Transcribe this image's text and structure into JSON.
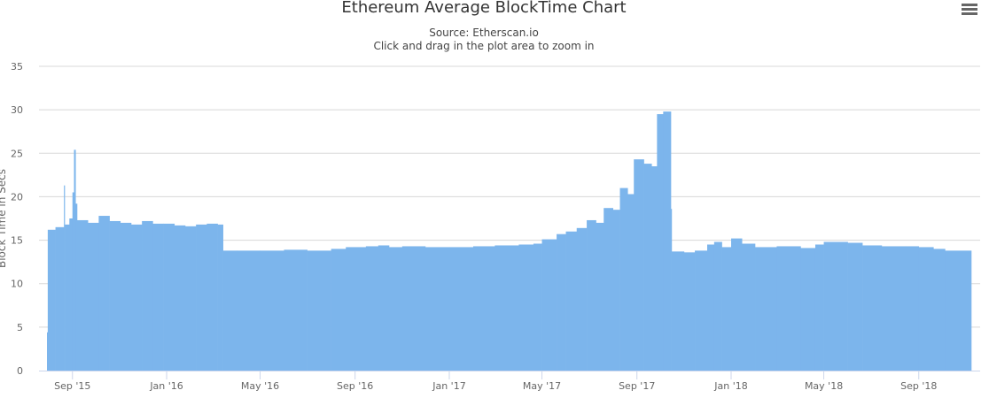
{
  "chart_data": {
    "type": "bar",
    "title": "Ethereum Average BlockTime Chart",
    "subtitle": "Source: Etherscan.io",
    "subtitle2": "Click and drag in the plot area to zoom in",
    "ylabel": "Block Time in Secs",
    "xlabel": "",
    "ylim": [
      0,
      35
    ],
    "yticks": [
      0,
      5,
      10,
      15,
      20,
      25,
      30,
      35
    ],
    "xlim": [
      "2015-07-30",
      "2018-11-08"
    ],
    "xticks": [
      {
        "date": "2015-09-01",
        "label": "Sep '15"
      },
      {
        "date": "2016-01-01",
        "label": "Jan '16"
      },
      {
        "date": "2016-05-01",
        "label": "May '16"
      },
      {
        "date": "2016-09-01",
        "label": "Sep '16"
      },
      {
        "date": "2017-01-01",
        "label": "Jan '17"
      },
      {
        "date": "2017-05-01",
        "label": "May '17"
      },
      {
        "date": "2017-09-01",
        "label": "Sep '17"
      },
      {
        "date": "2018-01-01",
        "label": "Jan '18"
      },
      {
        "date": "2018-05-01",
        "label": "May '18"
      },
      {
        "date": "2018-09-01",
        "label": "Sep '18"
      }
    ],
    "grid": true,
    "legend": "none",
    "bar_color": "#7cb5ec",
    "points": [
      [
        "2015-07-30",
        4.4
      ],
      [
        "2015-07-31",
        16.2
      ],
      [
        "2015-08-10",
        16.5
      ],
      [
        "2015-08-21",
        21.3
      ],
      [
        "2015-08-22",
        16.8
      ],
      [
        "2015-08-28",
        17.5
      ],
      [
        "2015-09-01",
        20.5
      ],
      [
        "2015-09-03",
        25.4
      ],
      [
        "2015-09-05",
        19.2
      ],
      [
        "2015-09-07",
        17.3
      ],
      [
        "2015-09-21",
        17.0
      ],
      [
        "2015-10-05",
        17.8
      ],
      [
        "2015-10-19",
        17.2
      ],
      [
        "2015-11-02",
        17.0
      ],
      [
        "2015-11-16",
        16.8
      ],
      [
        "2015-11-30",
        17.2
      ],
      [
        "2015-12-14",
        16.9
      ],
      [
        "2015-12-28",
        16.9
      ],
      [
        "2016-01-11",
        16.7
      ],
      [
        "2016-01-25",
        16.6
      ],
      [
        "2016-02-08",
        16.8
      ],
      [
        "2016-02-22",
        16.9
      ],
      [
        "2016-03-07",
        16.8
      ],
      [
        "2016-03-14",
        13.8
      ],
      [
        "2016-04-01",
        13.8
      ],
      [
        "2016-05-01",
        13.8
      ],
      [
        "2016-06-01",
        13.9
      ],
      [
        "2016-07-01",
        13.8
      ],
      [
        "2016-08-01",
        14.0
      ],
      [
        "2016-08-20",
        14.2
      ],
      [
        "2016-09-15",
        14.3
      ],
      [
        "2016-10-01",
        14.4
      ],
      [
        "2016-10-15",
        14.2
      ],
      [
        "2016-11-01",
        14.3
      ],
      [
        "2016-12-01",
        14.2
      ],
      [
        "2017-01-01",
        14.2
      ],
      [
        "2017-02-01",
        14.3
      ],
      [
        "2017-03-01",
        14.4
      ],
      [
        "2017-04-01",
        14.5
      ],
      [
        "2017-04-20",
        14.6
      ],
      [
        "2017-05-01",
        15.1
      ],
      [
        "2017-05-20",
        15.7
      ],
      [
        "2017-06-01",
        16.0
      ],
      [
        "2017-06-15",
        16.4
      ],
      [
        "2017-06-28",
        17.3
      ],
      [
        "2017-07-10",
        17.0
      ],
      [
        "2017-07-20",
        18.7
      ],
      [
        "2017-08-01",
        18.5
      ],
      [
        "2017-08-10",
        21.0
      ],
      [
        "2017-08-20",
        20.3
      ],
      [
        "2017-08-28",
        24.3
      ],
      [
        "2017-09-10",
        23.8
      ],
      [
        "2017-09-20",
        23.5
      ],
      [
        "2017-09-27",
        29.5
      ],
      [
        "2017-10-05",
        29.8
      ],
      [
        "2017-10-15",
        18.6
      ],
      [
        "2017-10-16",
        13.7
      ],
      [
        "2017-11-01",
        13.6
      ],
      [
        "2017-11-15",
        13.8
      ],
      [
        "2017-12-01",
        14.5
      ],
      [
        "2017-12-10",
        14.8
      ],
      [
        "2017-12-20",
        14.2
      ],
      [
        "2018-01-01",
        15.2
      ],
      [
        "2018-01-15",
        14.6
      ],
      [
        "2018-02-01",
        14.2
      ],
      [
        "2018-03-01",
        14.3
      ],
      [
        "2018-04-01",
        14.1
      ],
      [
        "2018-04-20",
        14.5
      ],
      [
        "2018-05-01",
        14.8
      ],
      [
        "2018-06-01",
        14.7
      ],
      [
        "2018-06-20",
        14.4
      ],
      [
        "2018-07-15",
        14.3
      ],
      [
        "2018-08-15",
        14.3
      ],
      [
        "2018-09-01",
        14.2
      ],
      [
        "2018-09-20",
        14.0
      ],
      [
        "2018-10-05",
        13.8
      ]
    ]
  },
  "menu_icon": "hamburger-menu-icon"
}
